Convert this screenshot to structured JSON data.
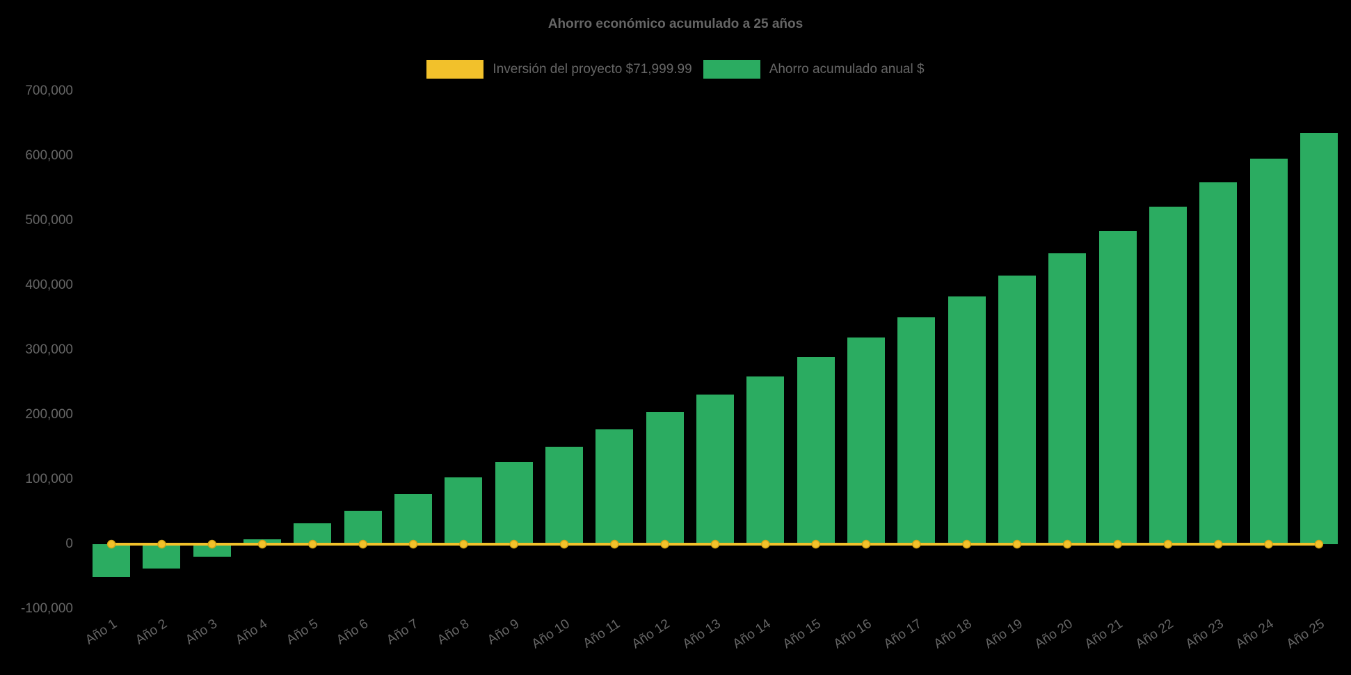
{
  "chart": {
    "title": "Ahorro económico acumulado a 25 años",
    "background": "#000000",
    "text_color": "#666666"
  },
  "legend": {
    "items": [
      {
        "label": "Inversión del proyecto $71,999.99",
        "color": "#F2C12B",
        "series": "line"
      },
      {
        "label": "Ahorro acumulado anual $",
        "color": "#2BAC61",
        "series": "bar"
      }
    ]
  },
  "chart_data": {
    "type": "bar",
    "title": "Ahorro económico acumulado a 25 años",
    "xlabel": "",
    "ylabel": "",
    "grid": false,
    "legend_position": "top",
    "ylim": [
      -100000,
      700000
    ],
    "yticks": [
      700000,
      600000,
      500000,
      400000,
      300000,
      200000,
      100000,
      0,
      -100000
    ],
    "ytick_labels": [
      "700,000",
      "600,000",
      "500,000",
      "400,000",
      "300,000",
      "200,000",
      "100,000",
      "0",
      "-100,000"
    ],
    "categories": [
      "Año 1",
      "Año 2",
      "Año 3",
      "Año 4",
      "Año 5",
      "Año 6",
      "Año 7",
      "Año 8",
      "Año 9",
      "Año 10",
      "Año 11",
      "Año 12",
      "Año 13",
      "Año 14",
      "Año 15",
      "Año 16",
      "Año 17",
      "Año 18",
      "Año 19",
      "Año 20",
      "Año 21",
      "Año 22",
      "Año 23",
      "Año 24",
      "Año 25"
    ],
    "series": [
      {
        "name": "Inversión del proyecto $71,999.99",
        "type": "line",
        "color": "#F2C12B",
        "marker": "circle",
        "marker_stroke": "#D9A514",
        "values": [
          0,
          0,
          0,
          0,
          0,
          0,
          0,
          0,
          0,
          0,
          0,
          0,
          0,
          0,
          0,
          0,
          0,
          0,
          0,
          0,
          0,
          0,
          0,
          0,
          0
        ]
      },
      {
        "name": "Ahorro acumulado anual $",
        "type": "bar",
        "color": "#2BAC61",
        "values": [
          -50000,
          -38000,
          -19000,
          8000,
          32000,
          52000,
          77000,
          103000,
          127000,
          151000,
          177000,
          204000,
          231000,
          259000,
          289000,
          319000,
          351000,
          383000,
          415000,
          449000,
          484000,
          521000,
          559000,
          596000,
          636000
        ]
      }
    ]
  }
}
